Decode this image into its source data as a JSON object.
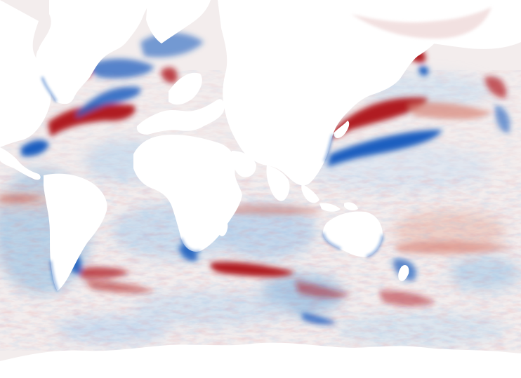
{
  "figure": {
    "projection": "equirectangular",
    "colormap": {
      "diverging": true,
      "negative": "#1f5fbf",
      "negative_light": "#b9d3e8",
      "neutral": "#f4eeee",
      "positive_light": "#e9b9ae",
      "positive": "#b01c22"
    },
    "land_color": "#ffffff",
    "regions": [
      {
        "id": "north-atlantic-gulf-stream",
        "sign": "positive",
        "intensity": "strong"
      },
      {
        "id": "north-atlantic-subpolar",
        "sign": "negative",
        "intensity": "strong"
      },
      {
        "id": "kuroshio-extension",
        "sign": "negative",
        "intensity": "strong"
      },
      {
        "id": "kuroshio-north-flank",
        "sign": "positive",
        "intensity": "strong"
      },
      {
        "id": "arctic-pacific-sector",
        "sign": "positive",
        "intensity": "moderate"
      },
      {
        "id": "antarctic-circumpolar-south-atlantic",
        "sign": "positive",
        "intensity": "strong"
      },
      {
        "id": "antarctic-circumpolar-indian",
        "sign": "mixed",
        "intensity": "moderate"
      },
      {
        "id": "south-pacific-subtropics",
        "sign": "negative",
        "intensity": "weak"
      },
      {
        "id": "southern-ocean-margin",
        "sign": "negative",
        "intensity": "weak"
      }
    ]
  }
}
